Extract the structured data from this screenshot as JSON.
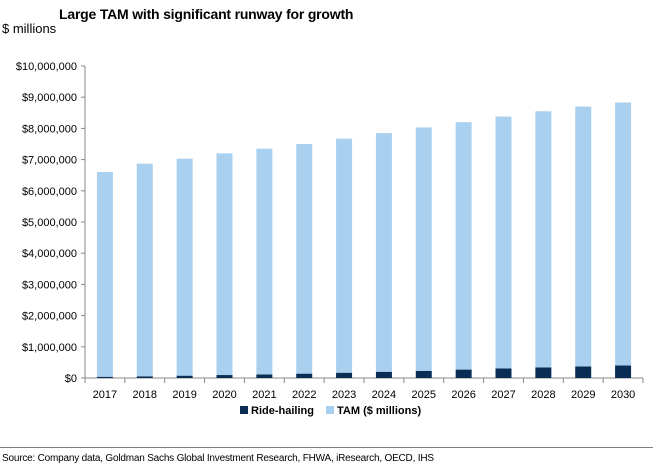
{
  "colors": {
    "tam": "#a9d0ef",
    "ride": "#0a2d55",
    "axis": "#888888",
    "text": "#000000"
  },
  "footer": {
    "source": "Source: Company data, Goldman Sachs Global Investment Research, FHWA, iResearch, OECD, IHS"
  },
  "chart_data": {
    "type": "bar",
    "stacked": true,
    "title": "Large TAM with significant runway for growth",
    "subtitle": "$ millions",
    "xlabel": "",
    "ylabel": "$ millions",
    "ylim": [
      0,
      10000000
    ],
    "yticks": [
      0,
      1000000,
      2000000,
      3000000,
      4000000,
      5000000,
      6000000,
      7000000,
      8000000,
      9000000,
      10000000
    ],
    "ytick_labels": [
      "$0",
      "$1,000,000",
      "$2,000,000",
      "$3,000,000",
      "$4,000,000",
      "$5,000,000",
      "$6,000,000",
      "$7,000,000",
      "$8,000,000",
      "$9,000,000",
      "$10,000,000"
    ],
    "categories": [
      "2017",
      "2018",
      "2019",
      "2020",
      "2021",
      "2022",
      "2023",
      "2024",
      "2025",
      "2026",
      "2027",
      "2028",
      "2029",
      "2030"
    ],
    "series": [
      {
        "name": "Ride-hailing",
        "color": "#0a2d55",
        "values": [
          40000,
          55000,
          75000,
          95000,
          115000,
          140000,
          170000,
          200000,
          230000,
          270000,
          305000,
          340000,
          370000,
          400000
        ]
      },
      {
        "name": "TAM ($ millions)",
        "color": "#a9d0ef",
        "values": [
          6560000,
          6815000,
          6955000,
          7105000,
          7235000,
          7360000,
          7500000,
          7650000,
          7800000,
          7930000,
          8075000,
          8210000,
          8330000,
          8430000
        ]
      }
    ],
    "legend": [
      "Ride-hailing",
      "TAM ($ millions)"
    ],
    "legend_position": "bottom",
    "grid": false
  }
}
